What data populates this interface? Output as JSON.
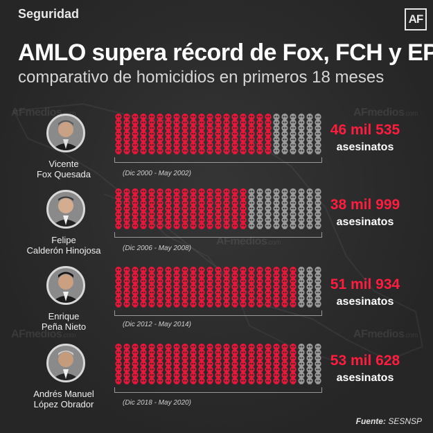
{
  "header": {
    "section": "Seguridad",
    "logo": "AF",
    "title": "AMLO supera récord de Fox, FCH y EPN",
    "subtitle": "comparativo de homicidios en primeros 18 meses"
  },
  "watermark": {
    "af": "AF",
    "medios": "medios",
    "com": ".com"
  },
  "chart_data": {
    "type": "bar",
    "title": "AMLO supera récord de Fox, FCH y EPN",
    "subtitle": "comparativo de homicidios en primeros 18 meses",
    "categories": [
      "Vicente Fox Quesada",
      "Felipe Calderón Hinojosa",
      "Enrique Peña Nieto",
      "Andrés Manuel López Obrador"
    ],
    "values": [
      46535,
      38999,
      51934,
      53628
    ],
    "unit": "asesinatos",
    "colors": {
      "filled": "#e8173a",
      "empty": "#9a9a9a"
    },
    "rows": [
      {
        "name_line1": "Vicente",
        "name_line2": "Fox Quesada",
        "period": "(Dic 2000 - May 2002)",
        "value": 46535,
        "value_label": "46 mil 535",
        "unit": "asesinatos"
      },
      {
        "name_line1": "Felipe",
        "name_line2": "Calderón Hinojosa",
        "period": "(Dic 2006 - May 2008)",
        "value": 38999,
        "value_label": "38 mil 999",
        "unit": "asesinatos"
      },
      {
        "name_line1": "Enrique",
        "name_line2": "Peña Nieto",
        "period": "(Dic 2012 - May 2014)",
        "value": 51934,
        "value_label": "51 mil 934",
        "unit": "asesinatos"
      },
      {
        "name_line1": "Andrés Manuel",
        "name_line2": "López Obrador",
        "period": "(Dic 2018 - May 2020)",
        "value": 53628,
        "value_label": "53 mil 628",
        "unit": "asesinatos"
      }
    ]
  },
  "source": {
    "label": "Fuente:",
    "value": "SESNSP"
  }
}
